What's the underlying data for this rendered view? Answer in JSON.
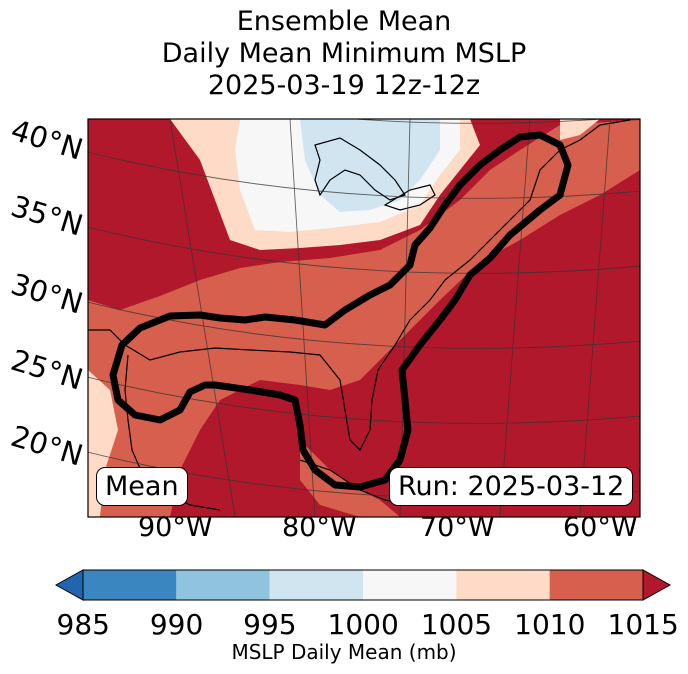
{
  "title": {
    "line1": "Ensemble Mean",
    "line2": "Daily Mean Minimum MSLP",
    "line3": "2025-03-19 12z-12z"
  },
  "map": {
    "lat_labels": [
      "40°N",
      "35°N",
      "30°N",
      "25°N",
      "20°N"
    ],
    "lon_labels": [
      "90°W",
      "80°W",
      "70°W",
      "60°W"
    ],
    "mean_label": "Mean",
    "run_label": "Run: 2025-03-12",
    "colors": {
      "c985": "#3a86c0",
      "c990": "#8fc3de",
      "c995": "#d1e5f0",
      "c1000": "#f7f7f7",
      "c1005": "#fddbc7",
      "c1010": "#d6604d",
      "c1015": "#b2182b"
    }
  },
  "colorbar": {
    "ticks": [
      "985",
      "990",
      "995",
      "1000",
      "1005",
      "1010",
      "1015"
    ],
    "title": "MSLP Daily Mean (mb)",
    "colors": [
      "#3a86c0",
      "#8fc3de",
      "#d1e5f0",
      "#f7f7f7",
      "#fddbc7",
      "#d6604d",
      "#b2182b"
    ],
    "under_color": "#2166ac",
    "over_color": "#b2182b"
  }
}
